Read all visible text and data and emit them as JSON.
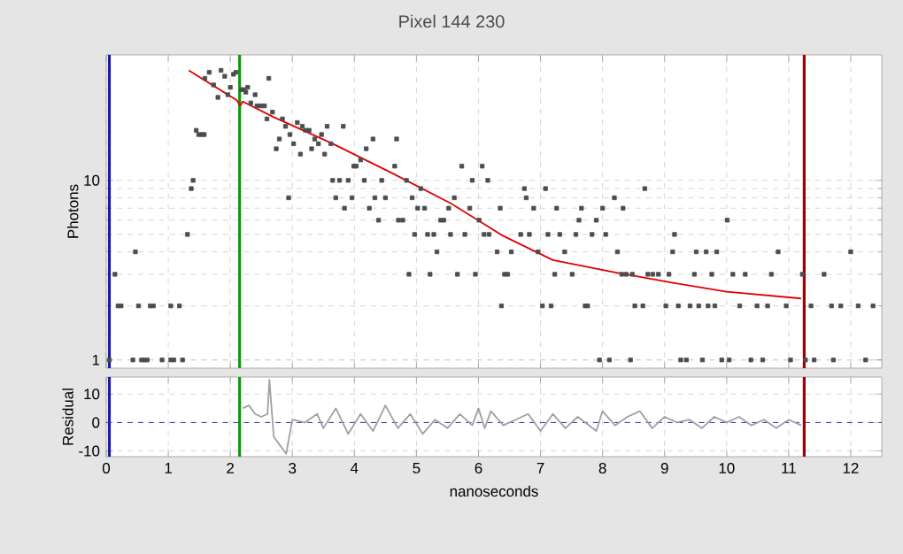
{
  "chart_data": [
    {
      "type": "scatter",
      "title": "Pixel 144 230",
      "ylabel": "Photons",
      "log": true,
      "grid": true,
      "tick_labels": "y",
      "xlim": [
        0,
        12.5
      ],
      "xticks": [
        0,
        1,
        2,
        3,
        4,
        5,
        6,
        7,
        8,
        9,
        10,
        11,
        12
      ],
      "ylim": [
        0.9,
        50
      ],
      "yticks": [
        1,
        10
      ],
      "series": [
        {
          "type": "scatter",
          "marker": "square",
          "color": "#4d4d4d",
          "x": [
            0.05,
            0.14,
            0.19,
            0.24,
            0.43,
            0.47,
            0.52,
            0.57,
            0.62,
            0.66,
            0.71,
            0.76,
            0.9,
            1.04,
            1.04,
            1.09,
            1.18,
            1.23,
            1.31,
            1.37,
            1.4,
            1.45,
            1.49,
            1.54,
            1.58,
            1.59,
            1.66,
            1.73,
            1.8,
            1.85,
            1.91,
            1.96,
            2.0,
            2.05,
            2.09,
            2.18,
            2.22,
            2.25,
            2.28,
            2.33,
            2.4,
            2.43,
            2.49,
            2.55,
            2.59,
            2.62,
            2.68,
            2.74,
            2.79,
            2.84,
            2.89,
            2.94,
            2.96,
            3.02,
            3.08,
            3.13,
            3.16,
            3.21,
            3.27,
            3.31,
            3.36,
            3.42,
            3.47,
            3.52,
            3.56,
            3.62,
            3.65,
            3.7,
            3.76,
            3.82,
            3.84,
            3.9,
            3.96,
            3.99,
            4.03,
            4.1,
            4.16,
            4.19,
            4.24,
            4.3,
            4.33,
            4.39,
            4.44,
            4.5,
            4.65,
            4.68,
            4.71,
            4.78,
            4.84,
            4.88,
            4.93,
            4.97,
            5.02,
            5.07,
            5.13,
            5.18,
            5.22,
            5.28,
            5.33,
            5.39,
            5.44,
            5.52,
            5.55,
            5.61,
            5.66,
            5.73,
            5.78,
            5.86,
            5.9,
            5.95,
            6.01,
            6.06,
            6.09,
            6.15,
            6.17,
            6.3,
            6.35,
            6.37,
            6.42,
            6.47,
            6.53,
            6.68,
            6.74,
            6.77,
            6.82,
            6.89,
            6.96,
            7.03,
            7.08,
            7.12,
            7.17,
            7.23,
            7.26,
            7.31,
            7.39,
            7.51,
            7.57,
            7.62,
            7.66,
            7.72,
            7.76,
            7.83,
            7.9,
            7.95,
            8.0,
            8.05,
            8.11,
            8.19,
            8.24,
            8.31,
            8.33,
            8.38,
            8.45,
            8.48,
            8.52,
            8.65,
            8.68,
            8.73,
            8.81,
            8.9,
            9.02,
            9.07,
            9.13,
            9.16,
            9.22,
            9.26,
            9.35,
            9.41,
            9.48,
            9.51,
            9.55,
            9.61,
            9.67,
            9.7,
            9.76,
            9.81,
            9.84,
            9.92,
            10.01,
            10.04,
            10.1,
            10.21,
            10.3,
            10.39,
            10.49,
            10.58,
            10.66,
            10.72,
            10.83,
            10.96,
            11.03,
            11.22,
            11.27,
            11.36,
            11.41,
            11.57,
            11.69,
            11.72,
            11.84,
            12.0,
            12.12,
            12.24,
            12.36
          ],
          "values": [
            1,
            3,
            2,
            2,
            1,
            4,
            2,
            1,
            1,
            1,
            2,
            2,
            1,
            1,
            2,
            1,
            2,
            1,
            5,
            9,
            10,
            19,
            18,
            18,
            18,
            37,
            40,
            34,
            29,
            41,
            38,
            30,
            33,
            39,
            40,
            32,
            32,
            31,
            33,
            27,
            30,
            26,
            26,
            26,
            22,
            37,
            24,
            15,
            17,
            22,
            20,
            8,
            18,
            16,
            21,
            14,
            20,
            19,
            19,
            15,
            17,
            16,
            18,
            14,
            20,
            16,
            10,
            8,
            10,
            20,
            7,
            10,
            8,
            12,
            12,
            13,
            10,
            15,
            7,
            17,
            8,
            6,
            10,
            8,
            12,
            17,
            6,
            6,
            10,
            3,
            8,
            5,
            7,
            9,
            7,
            5,
            3,
            5,
            4,
            6,
            6,
            7,
            5,
            8,
            3,
            12,
            5,
            7,
            10,
            3,
            6,
            12,
            5,
            10,
            5,
            4,
            7,
            2,
            3,
            3,
            4,
            5,
            9,
            8,
            5,
            7,
            4,
            2,
            9,
            5,
            2,
            3,
            7,
            5,
            4,
            3,
            5,
            6,
            7,
            2,
            2,
            5,
            6,
            1,
            7,
            5,
            1,
            8,
            4,
            3,
            7,
            3,
            1,
            3,
            2,
            2,
            9,
            3,
            3,
            3,
            2,
            3,
            4,
            5,
            2,
            1,
            1,
            2,
            3,
            4,
            2,
            1,
            4,
            2,
            3,
            2,
            4,
            1,
            6,
            1,
            3,
            2,
            3,
            1,
            2,
            1,
            2,
            3,
            4,
            2,
            1,
            3,
            1,
            2,
            1,
            3,
            2,
            1,
            2,
            4,
            2,
            1,
            2
          ]
        },
        {
          "type": "line",
          "color": "#e00000",
          "x": [
            1.33,
            2.1,
            2.16,
            2.2,
            2.7,
            3.65,
            4.6,
            5.54,
            6.4,
            7.2,
            8.15,
            9.1,
            10.0,
            11.2
          ],
          "values": [
            41,
            28,
            26,
            27.5,
            22.5,
            16,
            11,
            7.5,
            4.9,
            3.6,
            3.1,
            2.7,
            2.4,
            2.2
          ]
        }
      ],
      "ref_lines": [
        {
          "axis": "x",
          "value": 0.05,
          "color": "#1a1aa6"
        },
        {
          "axis": "x",
          "value": 2.15,
          "color": "#00a000"
        },
        {
          "axis": "x",
          "value": 11.25,
          "color": "#a00000"
        }
      ]
    },
    {
      "type": "line",
      "xlabel": "nanoseconds",
      "ylabel": "Residual",
      "grid": true,
      "xlim": [
        0,
        12.5
      ],
      "xticks": [
        0,
        1,
        2,
        3,
        4,
        5,
        6,
        7,
        8,
        9,
        10,
        11,
        12
      ],
      "ylim": [
        -12,
        16
      ],
      "yticks": [
        -10,
        0,
        10
      ],
      "series": [
        {
          "color": "#a0a0a0",
          "x": [
            2.2,
            2.3,
            2.4,
            2.5,
            2.6,
            2.63,
            2.7,
            2.8,
            2.9,
            2.95,
            3.0,
            3.2,
            3.4,
            3.5,
            3.7,
            3.9,
            4.1,
            4.3,
            4.5,
            4.7,
            4.9,
            5.1,
            5.3,
            5.5,
            5.7,
            5.9,
            6.0,
            6.1,
            6.2,
            6.4,
            6.6,
            6.8,
            7.0,
            7.2,
            7.4,
            7.6,
            7.9,
            8.0,
            8.2,
            8.4,
            8.6,
            8.8,
            9.0,
            9.2,
            9.4,
            9.6,
            9.8,
            10.0,
            10.2,
            10.4,
            10.6,
            10.8,
            11.0,
            11.2
          ],
          "values": [
            5,
            6,
            3,
            2,
            3,
            15,
            -5,
            -8,
            -11,
            -5,
            1,
            0,
            3,
            -2,
            5,
            -4,
            3,
            -3,
            6,
            -2,
            3,
            -4,
            1,
            -2,
            3,
            -1,
            5,
            -2,
            4,
            -1,
            1,
            3,
            -3,
            3,
            -2,
            2,
            -3,
            4,
            -1,
            2,
            4,
            -2,
            2,
            0,
            1,
            -2,
            2,
            0,
            2,
            -1,
            1,
            -2,
            1,
            -1
          ]
        }
      ],
      "ref_lines": [
        {
          "axis": "x",
          "value": 0.05,
          "color": "#1a1aa6"
        },
        {
          "axis": "x",
          "value": 2.15,
          "color": "#00a000"
        },
        {
          "axis": "x",
          "value": 11.25,
          "color": "#a00000"
        },
        {
          "axis": "y",
          "value": 0,
          "color": "#3030d0",
          "line_style": "dashed"
        }
      ]
    }
  ]
}
